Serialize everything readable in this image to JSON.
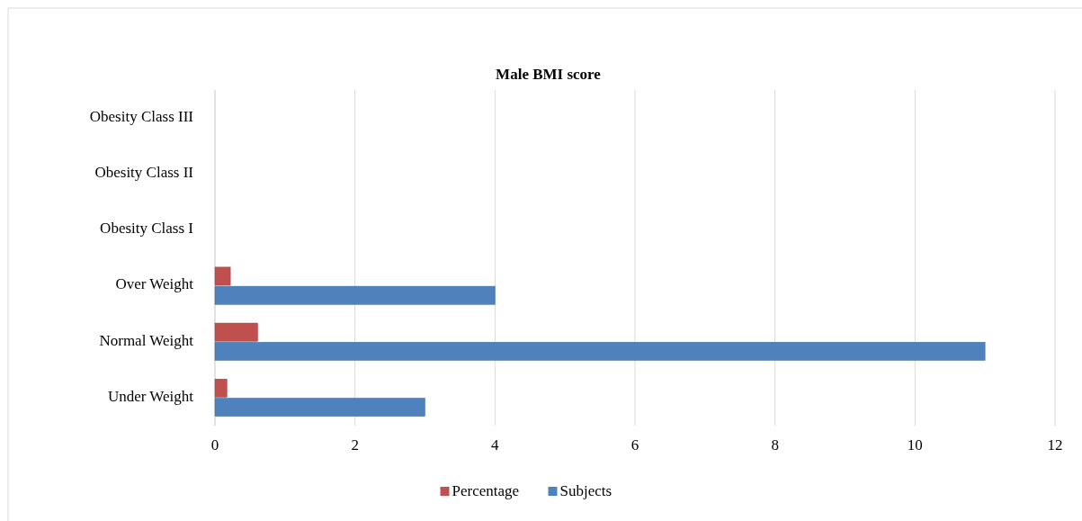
{
  "chart_data": {
    "type": "bar",
    "orientation": "horizontal",
    "title": "Male BMI score",
    "categories": [
      "Obesity Class III",
      "Obesity Class II",
      "Obesity Class I",
      "Over Weight",
      "Normal Weight",
      "Under Weight"
    ],
    "series": [
      {
        "name": "Percentage",
        "color": "#c0504d",
        "values": [
          0,
          0,
          0,
          0.22,
          0.61,
          0.17
        ]
      },
      {
        "name": "Subjects",
        "color": "#4f81bd",
        "values": [
          0,
          0,
          0,
          4,
          11,
          3
        ]
      }
    ],
    "xlim": [
      0,
      12
    ],
    "xticks": [
      0,
      2,
      4,
      6,
      8,
      10,
      12
    ],
    "grid": "x",
    "legend": "bottom"
  }
}
